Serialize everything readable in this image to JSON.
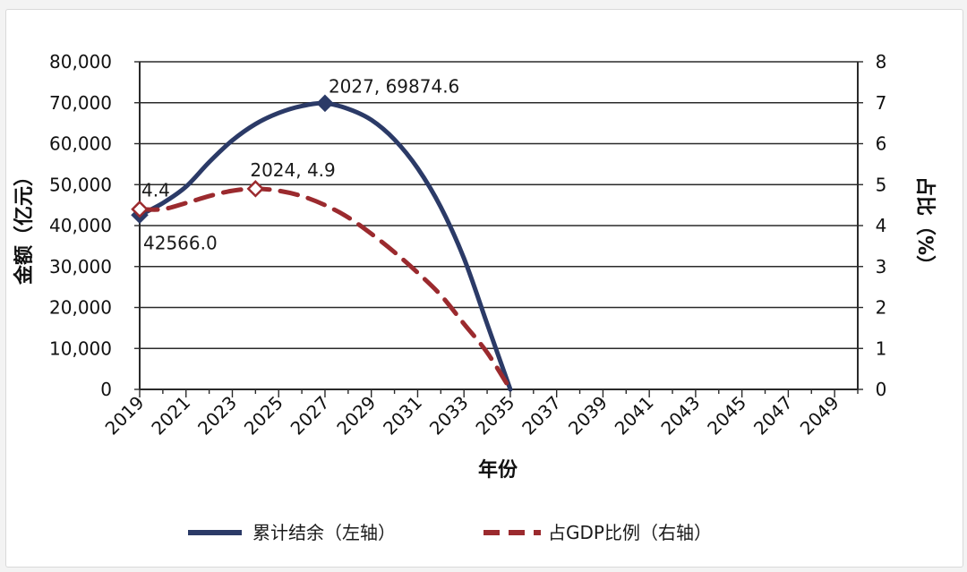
{
  "chart_data": {
    "type": "line",
    "title": "",
    "xlabel": "年份",
    "ylabel_left": "金额（亿元）",
    "ylabel_right": "占比（%）",
    "x_ticks": [
      "2019",
      "2021",
      "2023",
      "2025",
      "2027",
      "2029",
      "2031",
      "2033",
      "2035",
      "2037",
      "2039",
      "2041",
      "2043",
      "2045",
      "2047",
      "2049"
    ],
    "y_left_ticks": [
      "0",
      "10,000",
      "20,000",
      "30,000",
      "40,000",
      "50,000",
      "60,000",
      "70,000",
      "80,000"
    ],
    "y_right_ticks": [
      "0",
      "1",
      "2",
      "3",
      "4",
      "5",
      "6",
      "7",
      "8"
    ],
    "ylim_left": [
      0,
      80000
    ],
    "ylim_right": [
      0,
      8
    ],
    "xlim": [
      2019,
      2050
    ],
    "grid": "horizontal",
    "series": [
      {
        "name": "累计结余（左轴）",
        "axis": "left",
        "color": "#2b3a67",
        "style": "solid",
        "x": [
          2019,
          2020,
          2021,
          2022,
          2023,
          2024,
          2025,
          2026,
          2027,
          2028,
          2029,
          2030,
          2031,
          2032,
          2033,
          2034,
          2035
        ],
        "values": [
          42566.0,
          45500,
          49500,
          55500,
          60800,
          64800,
          67500,
          69200,
          69874.6,
          68500,
          65800,
          61000,
          54000,
          44500,
          32000,
          16000,
          0
        ]
      },
      {
        "name": "占GDP比例（右轴）",
        "axis": "right",
        "color": "#9b2a2e",
        "style": "dashed",
        "x": [
          2019,
          2020,
          2021,
          2022,
          2023,
          2024,
          2025,
          2026,
          2027,
          2028,
          2029,
          2030,
          2031,
          2032,
          2033,
          2034,
          2035
        ],
        "values": [
          4.4,
          4.4,
          4.55,
          4.72,
          4.85,
          4.9,
          4.85,
          4.72,
          4.5,
          4.2,
          3.8,
          3.35,
          2.85,
          2.3,
          1.6,
          0.9,
          0
        ]
      }
    ],
    "annotations": [
      {
        "series": 0,
        "x": 2027,
        "text": "2027, 69874.6",
        "marker": true
      },
      {
        "series": 0,
        "x": 2019,
        "text": "42566.0",
        "marker": true
      },
      {
        "series": 1,
        "x": 2024,
        "text": "2024, 4.9",
        "marker": true
      },
      {
        "series": 1,
        "x": 2019,
        "text": "4.4",
        "marker": true
      }
    ],
    "legend": "bottom"
  }
}
